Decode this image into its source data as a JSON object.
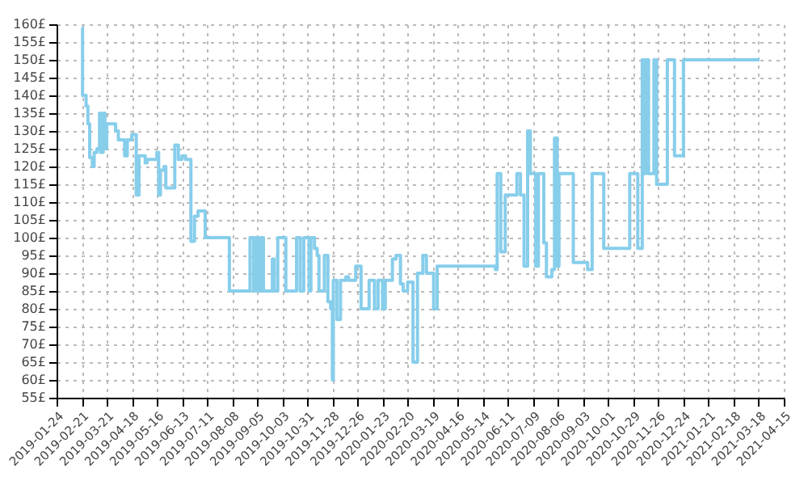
{
  "chart_data": {
    "type": "step",
    "x": [
      "2019-02-21",
      "2019-02-22",
      "2019-02-26",
      "2019-02-28",
      "2019-03-02",
      "2019-03-05",
      "2019-03-07",
      "2019-03-10",
      "2019-03-13",
      "2019-03-14",
      "2019-03-17",
      "2019-03-19",
      "2019-03-21",
      "2019-03-31",
      "2019-04-03",
      "2019-04-10",
      "2019-04-13",
      "2019-04-18",
      "2019-04-23",
      "2019-04-26",
      "2019-05-03",
      "2019-05-05",
      "2019-05-16",
      "2019-05-18",
      "2019-05-20",
      "2019-05-24",
      "2019-05-26",
      "2019-06-05",
      "2019-06-09",
      "2019-06-13",
      "2019-06-17",
      "2019-06-23",
      "2019-06-27",
      "2019-07-01",
      "2019-07-09",
      "2019-08-05",
      "2019-08-28",
      "2019-09-01",
      "2019-09-03",
      "2019-09-06",
      "2019-09-09",
      "2019-09-12",
      "2019-09-22",
      "2019-09-24",
      "2019-09-28",
      "2019-10-07",
      "2019-10-19",
      "2019-10-23",
      "2019-10-27",
      "2019-11-02",
      "2019-11-04",
      "2019-11-08",
      "2019-11-11",
      "2019-11-13",
      "2019-11-19",
      "2019-11-23",
      "2019-11-26",
      "2019-11-28",
      "2019-11-29",
      "2019-12-03",
      "2019-12-07",
      "2019-12-13",
      "2019-12-16",
      "2019-12-24",
      "2019-12-30",
      "2020-01-08",
      "2020-01-14",
      "2020-01-18",
      "2020-01-23",
      "2020-01-26",
      "2020-02-03",
      "2020-02-07",
      "2020-02-12",
      "2020-02-15",
      "2020-02-20",
      "2020-02-26",
      "2020-03-02",
      "2020-03-08",
      "2020-03-12",
      "2020-03-20",
      "2020-03-24",
      "2020-05-28",
      "2020-05-30",
      "2020-06-03",
      "2020-06-08",
      "2020-06-21",
      "2020-06-25",
      "2020-06-29",
      "2020-07-03",
      "2020-07-06",
      "2020-07-12",
      "2020-07-15",
      "2020-07-21",
      "2020-07-24",
      "2020-07-30",
      "2020-08-02",
      "2020-08-05",
      "2020-08-07",
      "2020-08-23",
      "2020-09-08",
      "2020-09-13",
      "2020-09-26",
      "2020-10-25",
      "2020-11-03",
      "2020-11-08",
      "2020-11-10",
      "2020-11-12",
      "2020-11-15",
      "2020-11-21",
      "2020-11-24",
      "2020-12-06",
      "2020-12-14",
      "2020-12-24",
      "2021-03-19"
    ],
    "series": [
      {
        "color": "#87ceeb",
        "values": [
          159,
          140,
          137,
          132,
          122.5,
          120,
          124,
          125,
          135,
          124,
          135,
          125,
          132,
          130,
          127.5,
          123,
          127.5,
          129,
          112,
          123,
          121,
          122,
          124,
          112,
          119,
          120,
          114,
          126,
          122,
          123,
          122,
          99,
          106,
          107.5,
          100,
          85,
          100,
          85,
          100,
          85,
          100,
          85,
          94,
          85,
          100,
          85,
          100,
          85,
          100,
          85,
          100,
          97,
          95,
          85,
          95,
          82,
          80,
          60,
          88,
          77,
          88,
          89,
          88,
          92,
          80,
          88,
          80,
          88,
          80,
          88,
          94,
          95,
          87,
          85,
          87.5,
          65,
          90,
          95,
          90,
          80,
          92,
          91,
          118,
          96,
          112,
          118,
          112,
          92,
          130,
          118,
          92,
          118,
          98.5,
          89,
          91,
          128,
          92,
          118,
          93,
          91,
          118,
          97,
          118,
          97,
          150,
          118,
          150,
          118,
          150,
          115,
          150,
          123,
          150,
          150
        ]
      }
    ],
    "xlim": [
      "2019-01-24",
      "2021-04-15"
    ],
    "xticks": [
      "2019-01-24",
      "2019-02-21",
      "2019-03-21",
      "2019-04-18",
      "2019-05-16",
      "2019-06-13",
      "2019-07-11",
      "2019-08-08",
      "2019-09-05",
      "2019-10-03",
      "2019-10-31",
      "2019-11-28",
      "2019-12-26",
      "2020-01-23",
      "2020-02-20",
      "2020-03-19",
      "2020-04-16",
      "2020-05-14",
      "2020-06-11",
      "2020-07-09",
      "2020-08-06",
      "2020-09-03",
      "2020-10-01",
      "2020-10-29",
      "2020-11-26",
      "2020-12-24",
      "2021-01-21",
      "2021-02-18",
      "2021-03-18",
      "2021-04-15"
    ],
    "ylim": [
      55,
      160
    ],
    "yticks": [
      {
        "value": 55,
        "label": "55£"
      },
      {
        "value": 60,
        "label": "60£"
      },
      {
        "value": 65,
        "label": "65£"
      },
      {
        "value": 70,
        "label": "70£"
      },
      {
        "value": 75,
        "label": "75£"
      },
      {
        "value": 80,
        "label": "80£"
      },
      {
        "value": 85,
        "label": "85£"
      },
      {
        "value": 90,
        "label": "90£"
      },
      {
        "value": 95,
        "label": "95£"
      },
      {
        "value": 100,
        "label": "100£"
      },
      {
        "value": 105,
        "label": "105£"
      },
      {
        "value": 110,
        "label": "110£"
      },
      {
        "value": 115,
        "label": "115£"
      },
      {
        "value": 120,
        "label": "120£"
      },
      {
        "value": 125,
        "label": "125£"
      },
      {
        "value": 130,
        "label": "130£"
      },
      {
        "value": 135,
        "label": "135£"
      },
      {
        "value": 140,
        "label": "140£"
      },
      {
        "value": 145,
        "label": "145£"
      },
      {
        "value": 150,
        "label": "150£"
      },
      {
        "value": 155,
        "label": "155£"
      },
      {
        "value": 160,
        "label": "160£"
      }
    ],
    "grid": true
  }
}
